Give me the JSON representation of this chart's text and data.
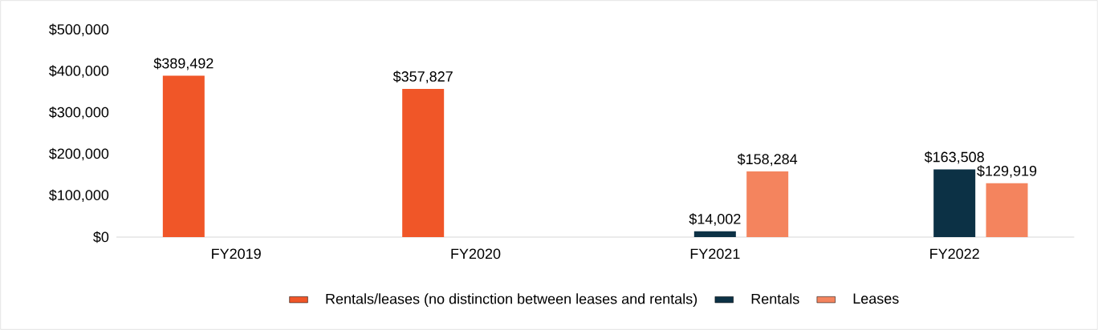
{
  "chart_data": {
    "type": "bar",
    "categories": [
      "FY2019",
      "FY2020",
      "FY2021",
      "FY2022"
    ],
    "series": [
      {
        "name": "Rentals/leases (no distinction between leases and rentals)",
        "color": "#f05628",
        "values": [
          389492,
          357827,
          null,
          null
        ],
        "value_labels": [
          "$389,492",
          "$357,827",
          null,
          null
        ]
      },
      {
        "name": "Rentals",
        "color": "#0c3145",
        "values": [
          null,
          null,
          14002,
          163508
        ],
        "value_labels": [
          null,
          null,
          "$14,002",
          "$163,508"
        ]
      },
      {
        "name": "Leases",
        "color": "#f4845e",
        "values": [
          null,
          null,
          158284,
          129919
        ],
        "value_labels": [
          null,
          null,
          "$158,284",
          "$129,919"
        ]
      }
    ],
    "ylim": [
      0,
      500000
    ],
    "yticks": [
      {
        "value": 0,
        "label": "$0"
      },
      {
        "value": 100000,
        "label": "$100,000"
      },
      {
        "value": 200000,
        "label": "$200,000"
      },
      {
        "value": 300000,
        "label": "$300,000"
      },
      {
        "value": 400000,
        "label": "$400,000"
      },
      {
        "value": 500000,
        "label": "$500,000"
      }
    ],
    "legend": "bottom"
  }
}
